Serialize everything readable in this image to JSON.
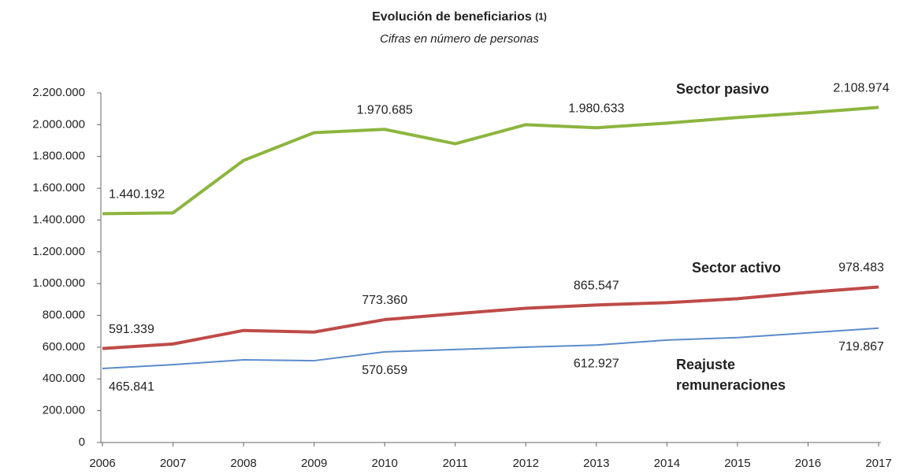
{
  "chart_data": {
    "type": "line",
    "title": "Evolución de beneficiarios",
    "title_note": "(1)",
    "subtitle": "Cifras en número de personas",
    "x": [
      2006,
      2007,
      2008,
      2009,
      2010,
      2011,
      2012,
      2013,
      2014,
      2015,
      2016,
      2017
    ],
    "xlim": [
      2006,
      2017
    ],
    "xticks": [
      2006,
      2007,
      2008,
      2009,
      2010,
      2011,
      2012,
      2013,
      2014,
      2015,
      2016,
      2017
    ],
    "ylim": [
      0,
      2200000
    ],
    "yticks": [
      0,
      {
        "value": 200000,
        "label": "200.000"
      },
      {
        "value": 400000,
        "label": "400.000"
      },
      {
        "value": 600000,
        "label": "600.000"
      },
      {
        "value": 800000,
        "label": "800.000"
      },
      {
        "value": 1000000,
        "label": "1.000.000"
      },
      {
        "value": 1200000,
        "label": "1.200.000"
      },
      {
        "value": 1400000,
        "label": "1.400.000"
      },
      {
        "value": 1600000,
        "label": "1.600.000"
      },
      {
        "value": 1800000,
        "label": "1.800.000"
      },
      {
        "value": 2000000,
        "label": "2.000.000"
      },
      {
        "value": 2200000,
        "label": "2.200.000"
      }
    ],
    "grid": false,
    "series": [
      {
        "name": "Sector pasivo",
        "color": "#8db53f",
        "values": [
          1440192,
          1445000,
          1775000,
          1950000,
          1970685,
          1880000,
          2000000,
          1980633,
          2010000,
          2045000,
          2075000,
          2108974
        ],
        "value_labels": [
          "1.440.192",
          null,
          null,
          null,
          "1.970.685",
          null,
          null,
          "1.980.633",
          null,
          null,
          null,
          "2.108.974"
        ]
      },
      {
        "name": "Sector activo",
        "color": "#be4b48",
        "values": [
          591339,
          620000,
          705000,
          695000,
          773360,
          810000,
          845000,
          865547,
          880000,
          905000,
          945000,
          978483
        ],
        "value_labels": [
          "591.339",
          null,
          null,
          null,
          "773.360",
          null,
          null,
          "865.547",
          null,
          null,
          null,
          "978.483"
        ]
      },
      {
        "name": "Reajuste remuneraciones",
        "color": "#5b8bc9",
        "values": [
          465841,
          490000,
          520000,
          515000,
          570659,
          585000,
          600000,
          612927,
          645000,
          660000,
          690000,
          719867
        ],
        "value_labels": [
          "465.841",
          null,
          null,
          null,
          "570.659",
          null,
          null,
          "612.927",
          null,
          null,
          null,
          "719.867"
        ]
      }
    ]
  }
}
